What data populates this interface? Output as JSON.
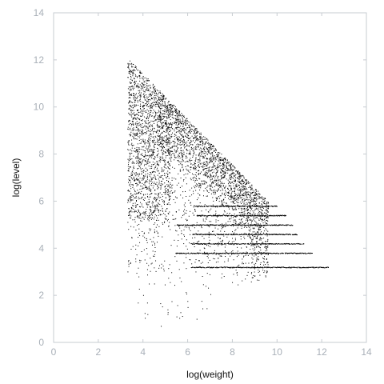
{
  "chart_data": {
    "type": "scatter",
    "xlabel": "log(weight)",
    "ylabel": "log(level)",
    "xlim": [
      0,
      14
    ],
    "ylim": [
      0,
      14
    ],
    "xticks": [
      0,
      2,
      4,
      6,
      8,
      10,
      12,
      14
    ],
    "yticks": [
      0,
      2,
      4,
      6,
      8,
      10,
      12,
      14
    ],
    "point_color": "#000000",
    "axis_color": "#c7ccd1",
    "tick_label_color": "#a9b0b8",
    "distribution_summary": {
      "min_log_weight": 3.3,
      "max_log_level": 12.1,
      "upper_boundary": {
        "from": [
          3.3,
          12.1
        ],
        "to": [
          9.8,
          5.8
        ]
      },
      "dense_region": {
        "x_range": [
          5.0,
          8.5
        ],
        "y_range": [
          7.0,
          10.8
        ]
      },
      "horizontal_tail_levels": [
        {
          "y": 3.2,
          "x_end": 12.3
        },
        {
          "y": 3.8,
          "x_end": 11.6
        },
        {
          "y": 4.2,
          "x_end": 11.2
        },
        {
          "y": 4.6,
          "x_end": 10.9
        },
        {
          "y": 5.0,
          "x_end": 10.7
        },
        {
          "y": 5.4,
          "x_end": 10.4
        },
        {
          "y": 5.8,
          "x_end": 10.0
        }
      ],
      "sparse_low_points": [
        [
          4.2,
          1.2
        ],
        [
          4.8,
          0.7
        ],
        [
          5.1,
          1.4
        ],
        [
          5.5,
          1.1
        ],
        [
          6.0,
          1.5
        ],
        [
          6.4,
          1.0
        ],
        [
          4.5,
          2.5
        ],
        [
          5.7,
          2.6
        ],
        [
          6.8,
          2.4
        ],
        [
          3.8,
          2.8
        ]
      ]
    }
  }
}
